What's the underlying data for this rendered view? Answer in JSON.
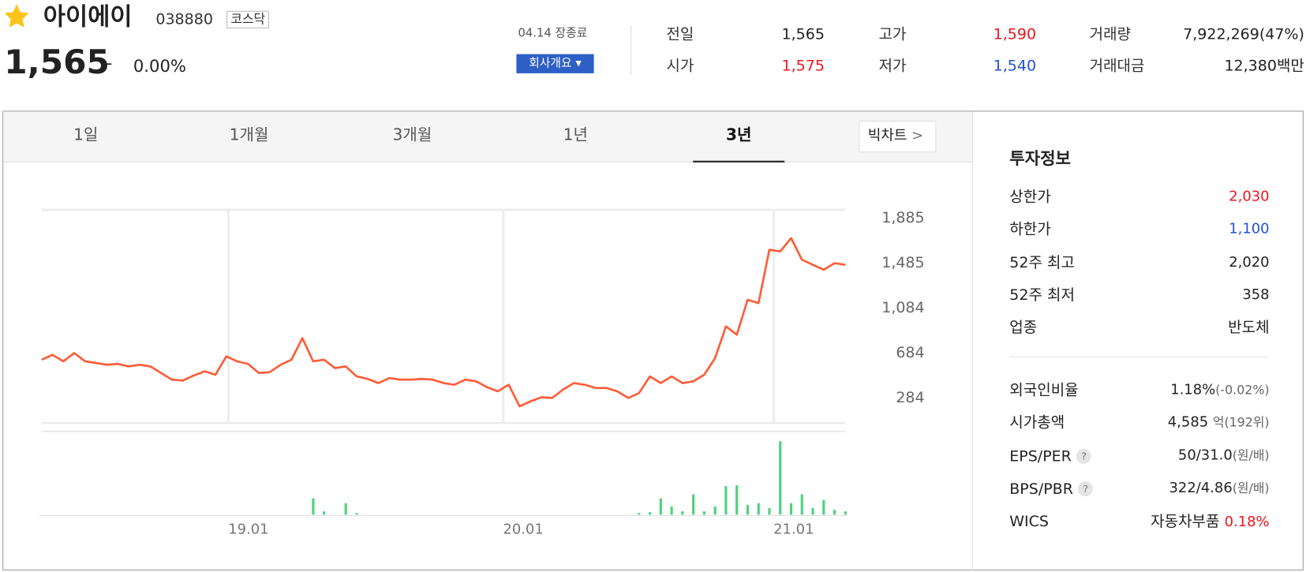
{
  "header": {
    "name": "아이에이",
    "code": "038880",
    "market": "코스닥",
    "price": "1,565",
    "change_sign": "–",
    "change_pct": "0.00%",
    "status": "04.14 장종료",
    "company_button": "회사개요"
  },
  "quote": {
    "prev_label": "전일",
    "prev": "1,565",
    "open_label": "시가",
    "open": "1,575",
    "high_label": "고가",
    "high": "1,590",
    "low_label": "저가",
    "low": "1,540",
    "volume_label": "거래량",
    "volume": "7,922,269(47%)",
    "amount_label": "거래대금",
    "amount": "12,380백만"
  },
  "tabs": [
    "1일",
    "1개월",
    "3개월",
    "1년",
    "3년"
  ],
  "active_tab": 4,
  "big_chart": "빅차트",
  "chart": {
    "type": "line",
    "color": "#ff5b37",
    "values": [
      610,
      654,
      596,
      670,
      596,
      581,
      566,
      573,
      551,
      566,
      551,
      492,
      433,
      425,
      470,
      507,
      477,
      640,
      596,
      573,
      492,
      500,
      566,
      610,
      803,
      596,
      610,
      536,
      551,
      462,
      440,
      403,
      447,
      433,
      433,
      440,
      433,
      403,
      388,
      433,
      418,
      366,
      329,
      388,
      196,
      240,
      277,
      270,
      344,
      403,
      388,
      359,
      359,
      329,
      270,
      314,
      462,
      403,
      462,
      403,
      418,
      477,
      625,
      907,
      833,
      1144,
      1114,
      1589,
      1574,
      1692,
      1500,
      1455,
      1411,
      1470,
      1455
    ],
    "xlim": [
      0,
      74
    ],
    "xticks": [
      {
        "value": 17.2,
        "label": "19.01"
      },
      {
        "value": 42.5,
        "label": "20.01"
      },
      {
        "value": 67.4,
        "label": "21.01"
      }
    ],
    "grid_x": true,
    "ylim": [
      47,
      1944
    ],
    "yticks": [
      {
        "value": 1885,
        "label": "1,885"
      },
      {
        "value": 1485,
        "label": "1,485"
      },
      {
        "value": 1084,
        "label": "1,084"
      },
      684,
      284
    ],
    "volume": {
      "color": "#4fd17f",
      "ylim": [
        0,
        95
      ],
      "values": [
        0,
        0,
        0,
        0,
        0,
        0,
        0,
        0,
        0,
        0,
        0,
        0,
        0,
        0,
        0,
        0,
        0,
        0,
        0,
        0,
        0,
        0,
        0,
        0,
        0,
        20,
        4,
        0,
        14,
        2,
        0,
        0,
        0,
        0,
        0,
        0,
        0,
        0,
        0,
        0,
        0,
        0,
        0,
        0,
        0,
        0,
        0,
        0,
        0,
        0,
        0,
        0,
        0,
        0,
        0,
        2,
        3,
        20,
        10,
        4,
        25,
        4,
        10,
        35,
        36,
        12,
        14,
        8,
        90,
        14,
        25,
        8,
        18,
        6,
        4
      ]
    }
  },
  "info": {
    "title": "투자정보",
    "help": "?",
    "upper_label": "상한가",
    "upper": "2,030",
    "lower_label": "하한가",
    "lower": "1,100",
    "high52_label": "52주 최고",
    "high52": "2,020",
    "low52_label": "52주 최저",
    "low52": "358",
    "sector_label": "업종",
    "sector": "반도체",
    "foreign_label": "외국인비율",
    "foreign": "1.18%",
    "foreign_change": "(-0.02%)",
    "cap_label": "시가총액",
    "cap": "4,585",
    "cap_unit": "억(192위)",
    "eps_label": "EPS/PER",
    "eps": "50/31.0",
    "eps_unit": "(원/배)",
    "bps_label": "BPS/PBR",
    "bps": "322/4.86",
    "bps_unit": "(원/배)",
    "wics_label": "WICS",
    "wics": "자동차부품",
    "wics_change": "0.18%"
  }
}
